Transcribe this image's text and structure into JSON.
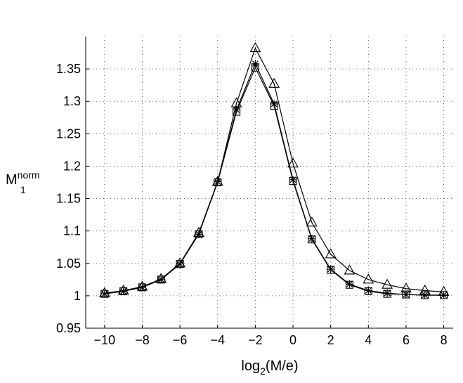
{
  "chart_data": {
    "type": "line",
    "title": "",
    "xlabel": {
      "main": "log",
      "sub": "2",
      "rest": "(M/e)"
    },
    "ylabel": {
      "main": "M",
      "sup": "norm",
      "sub": "1"
    },
    "xlim": [
      -11,
      8.5
    ],
    "ylim": [
      0.95,
      1.4
    ],
    "x_ticks": [
      -10,
      -8,
      -6,
      -4,
      -2,
      0,
      2,
      4,
      6,
      8
    ],
    "x_tick_labels": [
      "−10",
      "−8",
      "−6",
      "−4",
      "−2",
      "0",
      "2",
      "4",
      "6",
      "8"
    ],
    "y_ticks": [
      0.95,
      1,
      1.05,
      1.1,
      1.15,
      1.2,
      1.25,
      1.3,
      1.35
    ],
    "y_tick_labels": [
      "0.95",
      "1",
      "1.05",
      "1.1",
      "1.15",
      "1.2",
      "1.25",
      "1.3",
      "1.35"
    ],
    "grid": true,
    "x": [
      -10,
      -9,
      -8,
      -7,
      -6,
      -5,
      -4,
      -3,
      -2,
      -1,
      0,
      1,
      2,
      3,
      4,
      5,
      6,
      7,
      8
    ],
    "series": [
      {
        "name": "triangle",
        "marker": "triangle",
        "values": [
          1.004,
          1.008,
          1.014,
          1.026,
          1.05,
          1.097,
          1.176,
          1.297,
          1.382,
          1.327,
          1.204,
          1.113,
          1.064,
          1.039,
          1.025,
          1.017,
          1.011,
          1.008,
          1.006
        ]
      },
      {
        "name": "square",
        "marker": "square",
        "values": [
          1.003,
          1.007,
          1.013,
          1.025,
          1.049,
          1.095,
          1.175,
          1.284,
          1.352,
          1.293,
          1.177,
          1.087,
          1.04,
          1.017,
          1.007,
          1.003,
          1.002,
          1.001,
          1.001
        ]
      },
      {
        "name": "asterisk",
        "marker": "asterisk",
        "values": [
          1.003,
          1.007,
          1.013,
          1.025,
          1.049,
          1.095,
          1.176,
          1.287,
          1.358,
          1.296,
          1.179,
          1.088,
          1.041,
          1.018,
          1.008,
          1.004,
          1.002,
          1.001,
          1.001
        ]
      }
    ]
  }
}
